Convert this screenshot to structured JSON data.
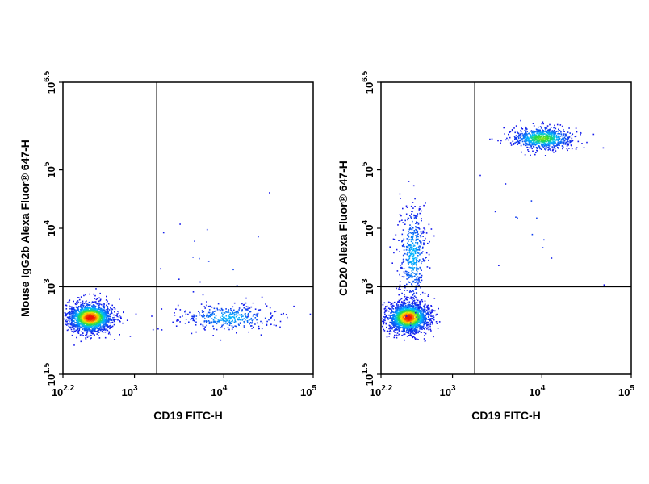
{
  "chart_data": [
    {
      "type": "scatter",
      "title": "",
      "xlabel": "CD19 FITC-H",
      "ylabel": "Mouse IgG2b Alexa Fluor® 647-H",
      "x_scale": "log",
      "y_scale": "log",
      "xlim_log10": [
        2.2,
        5
      ],
      "ylim_log10": [
        1.5,
        6.5
      ],
      "x_ticks": [
        {
          "log10": 2.2,
          "base": "10",
          "exp": "2.2"
        },
        {
          "log10": 3,
          "base": "10",
          "exp": "3"
        },
        {
          "log10": 4,
          "base": "10",
          "exp": "4"
        },
        {
          "log10": 5,
          "base": "10",
          "exp": "5"
        }
      ],
      "y_ticks": [
        {
          "log10": 1.5,
          "base": "10",
          "exp": "1.5"
        },
        {
          "log10": 3,
          "base": "10",
          "exp": "3"
        },
        {
          "log10": 4,
          "base": "10",
          "exp": "4"
        },
        {
          "log10": 5,
          "base": "10",
          "exp": "5"
        },
        {
          "log10": 6.5,
          "base": "10",
          "exp": "6.5"
        }
      ],
      "gate_x_log10": 3.25,
      "gate_y_log10": 3.0,
      "populations": [
        {
          "name": "",
          "x_log10": 2.5,
          "y_log10": 2.48,
          "sx": 0.13,
          "sy": 0.13,
          "count": 1700,
          "density": "high"
        },
        {
          "name": "",
          "x_log10": 4.05,
          "y_log10": 2.48,
          "sx": 0.28,
          "sy": 0.12,
          "count": 380,
          "density": "low"
        },
        {
          "name": "",
          "x_log10": 4.0,
          "y_log10": 3.5,
          "sx": 0.35,
          "sy": 0.55,
          "count": 18,
          "density": "sparse"
        }
      ],
      "grid": false
    },
    {
      "type": "scatter",
      "title": "",
      "xlabel": "CD19 FITC-H",
      "ylabel": "CD20 Alexa Fluor® 647-H",
      "x_scale": "log",
      "y_scale": "log",
      "xlim_log10": [
        2.2,
        5
      ],
      "ylim_log10": [
        1.5,
        6.5
      ],
      "x_ticks": [
        {
          "log10": 2.2,
          "base": "10",
          "exp": "2.2"
        },
        {
          "log10": 3,
          "base": "10",
          "exp": "3"
        },
        {
          "log10": 4,
          "base": "10",
          "exp": "4"
        },
        {
          "log10": 5,
          "base": "10",
          "exp": "5"
        }
      ],
      "y_ticks": [
        {
          "log10": 1.5,
          "base": "10",
          "exp": "1.5"
        },
        {
          "log10": 3,
          "base": "10",
          "exp": "3"
        },
        {
          "log10": 4,
          "base": "10",
          "exp": "4"
        },
        {
          "log10": 5,
          "base": "10",
          "exp": "5"
        },
        {
          "log10": 6.5,
          "base": "10",
          "exp": "6.5"
        }
      ],
      "gate_x_log10": 3.25,
      "gate_y_log10": 3.0,
      "populations": [
        {
          "name": "",
          "x_log10": 2.5,
          "y_log10": 2.48,
          "sx": 0.12,
          "sy": 0.13,
          "count": 1700,
          "density": "high"
        },
        {
          "name": "",
          "x_log10": 2.55,
          "y_log10": 3.55,
          "sx": 0.08,
          "sy": 0.45,
          "count": 480,
          "density": "low"
        },
        {
          "name": "",
          "x_log10": 4.0,
          "y_log10": 5.55,
          "sx": 0.18,
          "sy": 0.1,
          "count": 800,
          "density": "medium"
        },
        {
          "name": "",
          "x_log10": 3.9,
          "y_log10": 4.2,
          "sx": 0.3,
          "sy": 0.55,
          "count": 14,
          "density": "sparse"
        }
      ],
      "grid": false
    }
  ]
}
